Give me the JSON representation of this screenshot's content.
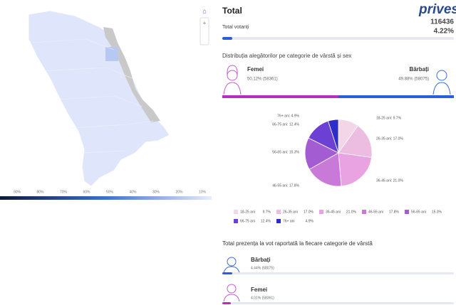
{
  "map": {
    "legend_labels": [
      "90%",
      "80%",
      "70%",
      "60%",
      "50%",
      "40%",
      "30%",
      "20%",
      "10%"
    ]
  },
  "header": {
    "title": "Total",
    "logo": "privesc",
    "subtitle": "Total votanți",
    "count": "116436",
    "percent": "4.22%"
  },
  "gender": {
    "title": "Distribuția alegătorilor pe categorie de vârstă și sex",
    "female": {
      "label": "Femei",
      "value": "50.12% (58361)"
    },
    "male": {
      "label": "Bărbați",
      "value": "49.88% (58075)"
    }
  },
  "chart_data": {
    "type": "pie",
    "categories": [
      "18-25 ani",
      "26-35 ani",
      "36-45 ani",
      "46-55 ani",
      "56-65 ani",
      "66-75 ani",
      "76+ ani"
    ],
    "values": [
      9.7,
      17.0,
      21.0,
      17.8,
      15.3,
      12.4,
      4.9
    ],
    "value_labels": [
      "9.7%",
      "17.0%",
      "21.0%",
      "17.8%",
      "15.3%",
      "12.4%",
      "4.9%"
    ],
    "slice_labels": [
      "18-25 ani: 9.7%",
      "26-35 ani: 17.0%",
      "36-45 ani: 21.0%",
      "46-55 ani: 17.8%",
      "56-65 ani: 15.3%",
      "66-75 ani: 12.4%",
      "76+ ani: 4.9%"
    ],
    "colors": [
      "#f3d6e8",
      "#ecbde0",
      "#e9a3e2",
      "#c97ad9",
      "#a45cd2",
      "#6b40d2",
      "#2e2ec6"
    ]
  },
  "turnout": {
    "title": "Total prezența la vot raportată la fiecare categorie de vârstă",
    "male": {
      "label": "Bărbați",
      "value": "4.44% (58075)"
    },
    "female": {
      "label": "Femei",
      "value": "4.01% (58361)"
    }
  }
}
